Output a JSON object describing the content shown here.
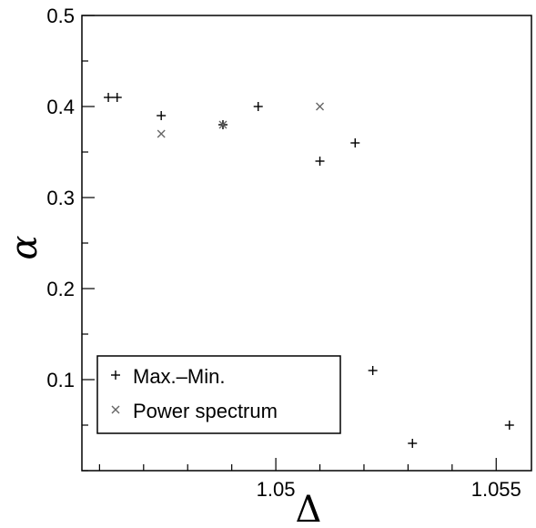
{
  "chart_data": {
    "type": "scatter",
    "xlabel": "Δ",
    "ylabel": "α",
    "xlim": [
      1.0456,
      1.0558
    ],
    "ylim": [
      0.0,
      0.5
    ],
    "x_ticks": [
      {
        "value": 1.05,
        "label": "1.05"
      },
      {
        "value": 1.055,
        "label": "1.055"
      }
    ],
    "y_ticks": [
      {
        "value": 0.1,
        "label": "0.1"
      },
      {
        "value": 0.2,
        "label": "0.2"
      },
      {
        "value": 0.3,
        "label": "0.3"
      },
      {
        "value": 0.4,
        "label": "0.4"
      },
      {
        "value": 0.5,
        "label": "0.5"
      }
    ],
    "x_minor_step": 0.001,
    "y_minor_step": 0.05,
    "grid": false,
    "legend_position": "bottom-left",
    "series": [
      {
        "name": "Max.–Min.",
        "marker": "plus",
        "color": "#000000",
        "points": [
          {
            "x": 1.0462,
            "y": 0.41
          },
          {
            "x": 1.0464,
            "y": 0.41
          },
          {
            "x": 1.0474,
            "y": 0.39
          },
          {
            "x": 1.0488,
            "y": 0.38
          },
          {
            "x": 1.0496,
            "y": 0.4
          },
          {
            "x": 1.051,
            "y": 0.34
          },
          {
            "x": 1.0518,
            "y": 0.36
          },
          {
            "x": 1.0522,
            "y": 0.11
          },
          {
            "x": 1.0531,
            "y": 0.03
          },
          {
            "x": 1.0553,
            "y": 0.05
          }
        ]
      },
      {
        "name": "Power spectrum",
        "marker": "cross",
        "color": "#666666",
        "points": [
          {
            "x": 1.0474,
            "y": 0.37
          },
          {
            "x": 1.0488,
            "y": 0.38
          },
          {
            "x": 1.051,
            "y": 0.4
          }
        ]
      }
    ]
  }
}
